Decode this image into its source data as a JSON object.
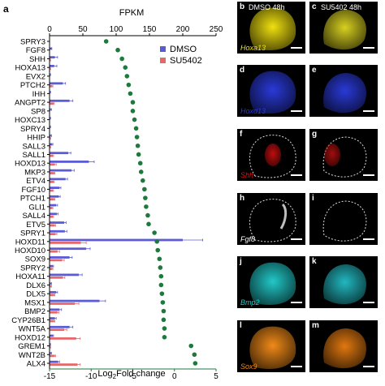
{
  "panel_a": {
    "label": "a",
    "top_axis_title": "FPKM",
    "top_ticks": [
      "0",
      "50",
      "100",
      "150",
      "200",
      "250"
    ],
    "bottom_ticks": [
      "-15",
      "-10",
      "-5",
      "0",
      "5"
    ]
  },
  "chart_data": {
    "type": "bar",
    "orientation": "horizontal",
    "categories": [
      "SPRY3",
      "FGF8",
      "SHH",
      "HOXA13",
      "EVX2",
      "PTCH2",
      "IHH",
      "ANGPT2",
      "SP8",
      "HOXC13",
      "SPRY4",
      "HHIP",
      "SALL3",
      "SALL1",
      "HOXD13",
      "MKP3",
      "ETV4",
      "FGF10",
      "PTCH1",
      "GLI1",
      "SALL4",
      "ETV5",
      "SPRY1",
      "HOXD11",
      "HOXD10",
      "SOX9",
      "SPRY2",
      "HOXA11",
      "DLX6",
      "DLX5",
      "MSX1",
      "BMP2",
      "CYP26B1",
      "WNT5A",
      "HOXD12",
      "GREM1",
      "WNT2B",
      "ALX4"
    ],
    "top_axis": {
      "label": "FPKM",
      "range": [
        0,
        250
      ],
      "ticks": [
        0,
        50,
        100,
        150,
        200,
        250
      ]
    },
    "bottom_axis": {
      "label": "Log2Fold change",
      "range": [
        -15,
        5
      ],
      "ticks": [
        -15,
        -10,
        -5,
        0,
        5
      ]
    },
    "series": [
      {
        "name": "DMSO",
        "axis": "top",
        "color": "#5b5bd6",
        "values": [
          0,
          3,
          8,
          7,
          1,
          20,
          1,
          30,
          2,
          1,
          1,
          2,
          4,
          28,
          59,
          33,
          24,
          15,
          14,
          10,
          11,
          22,
          23,
          200,
          55,
          30,
          5,
          44,
          2,
          10,
          75,
          15,
          8,
          30,
          5,
          1,
          2,
          13
        ],
        "errors": [
          0,
          0.5,
          4,
          4,
          0.5,
          4,
          0.5,
          5,
          1,
          0.5,
          0.5,
          1,
          1,
          4,
          8,
          4,
          3,
          2,
          2,
          2,
          2,
          3,
          3,
          30,
          6,
          4,
          1,
          5,
          1,
          2,
          9,
          3,
          2,
          5,
          1,
          0.5,
          1,
          2
        ]
      },
      {
        "name": "SU5402",
        "axis": "top",
        "color": "#e8686a",
        "values": [
          0,
          0,
          1,
          1,
          0,
          4,
          0,
          6,
          0,
          0,
          0,
          1,
          1,
          5,
          8,
          7,
          6,
          5,
          7,
          4,
          5,
          8,
          9,
          47,
          12,
          19,
          4,
          20,
          2,
          7,
          38,
          12,
          7,
          22,
          40,
          1,
          8,
          42
        ],
        "errors": [
          0,
          0,
          0.5,
          0.5,
          0,
          1,
          0,
          1,
          0,
          0,
          0,
          0.5,
          0.5,
          1,
          2,
          1,
          1,
          1,
          1,
          1,
          1,
          1,
          2,
          8,
          3,
          3,
          1,
          3,
          1,
          1,
          6,
          2,
          1,
          4,
          6,
          0.5,
          1,
          4
        ]
      },
      {
        "name": "Log2Fold change",
        "axis": "bottom",
        "type": "scatter",
        "color": "#1e7a3c",
        "values": [
          -8.2,
          -6.8,
          -6.3,
          -5.9,
          -5.7,
          -5.5,
          -5.3,
          -5.0,
          -5.0,
          -4.8,
          -4.6,
          -4.5,
          -4.4,
          -4.3,
          -4.1,
          -4.0,
          -3.8,
          -3.6,
          -3.5,
          -3.4,
          -3.2,
          -3.1,
          -2.4,
          -2.1,
          -2.0,
          -1.8,
          -1.7,
          -1.6,
          -1.6,
          -1.5,
          -1.4,
          -1.3,
          -1.3,
          -1.2,
          -1.2,
          2.0,
          2.4,
          2.5
        ]
      }
    ],
    "legend": {
      "position": "top-right",
      "entries": [
        "DMSO",
        "SU5402"
      ]
    },
    "grid": false
  },
  "panels": [
    {
      "label": "b",
      "title": "DMSO 48h",
      "gene": "Hoxa13",
      "color": "#f0e010"
    },
    {
      "label": "c",
      "title": "SU5402 48h",
      "gene": "",
      "color": "#d8d020"
    },
    {
      "label": "d",
      "title": "",
      "gene": "Hoxd13",
      "color": "#2a3ad8"
    },
    {
      "label": "e",
      "title": "",
      "gene": "",
      "color": "#2a3ad8"
    },
    {
      "label": "f",
      "title": "",
      "gene": "Shh",
      "color": "#e01010"
    },
    {
      "label": "g",
      "title": "",
      "gene": "",
      "color": "#c01010"
    },
    {
      "label": "h",
      "title": "",
      "gene": "Fgf8",
      "color": "#ffffff"
    },
    {
      "label": "i",
      "title": "",
      "gene": "",
      "color": "#ffffff"
    },
    {
      "label": "j",
      "title": "",
      "gene": "Bmp2",
      "color": "#22c8c8"
    },
    {
      "label": "k",
      "title": "",
      "gene": "",
      "color": "#22b8c0"
    },
    {
      "label": "l",
      "title": "",
      "gene": "Sox9",
      "color": "#f08a18"
    },
    {
      "label": "m",
      "title": "",
      "gene": "",
      "color": "#e07810"
    }
  ]
}
